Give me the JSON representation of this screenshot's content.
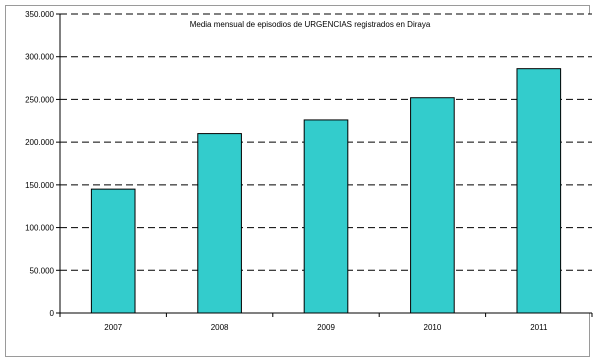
{
  "chart_data": {
    "type": "bar",
    "title": "Media mensual de episodios de URGENCIAS registrados en Diraya",
    "categories": [
      "2007",
      "2008",
      "2009",
      "2010",
      "2011"
    ],
    "values": [
      145000,
      210000,
      226000,
      252000,
      286000
    ],
    "ylim": [
      0,
      350000
    ],
    "yticks": [
      0,
      50000,
      100000,
      150000,
      200000,
      250000,
      300000,
      350000
    ],
    "ytick_labels": [
      "0",
      "50.000",
      "100.000",
      "150.000",
      "200.000",
      "250.000",
      "300.000",
      "350.000"
    ],
    "xlabel": "",
    "ylabel": "",
    "grid": "dashed horizontal",
    "bar_color": "#33cccc"
  }
}
